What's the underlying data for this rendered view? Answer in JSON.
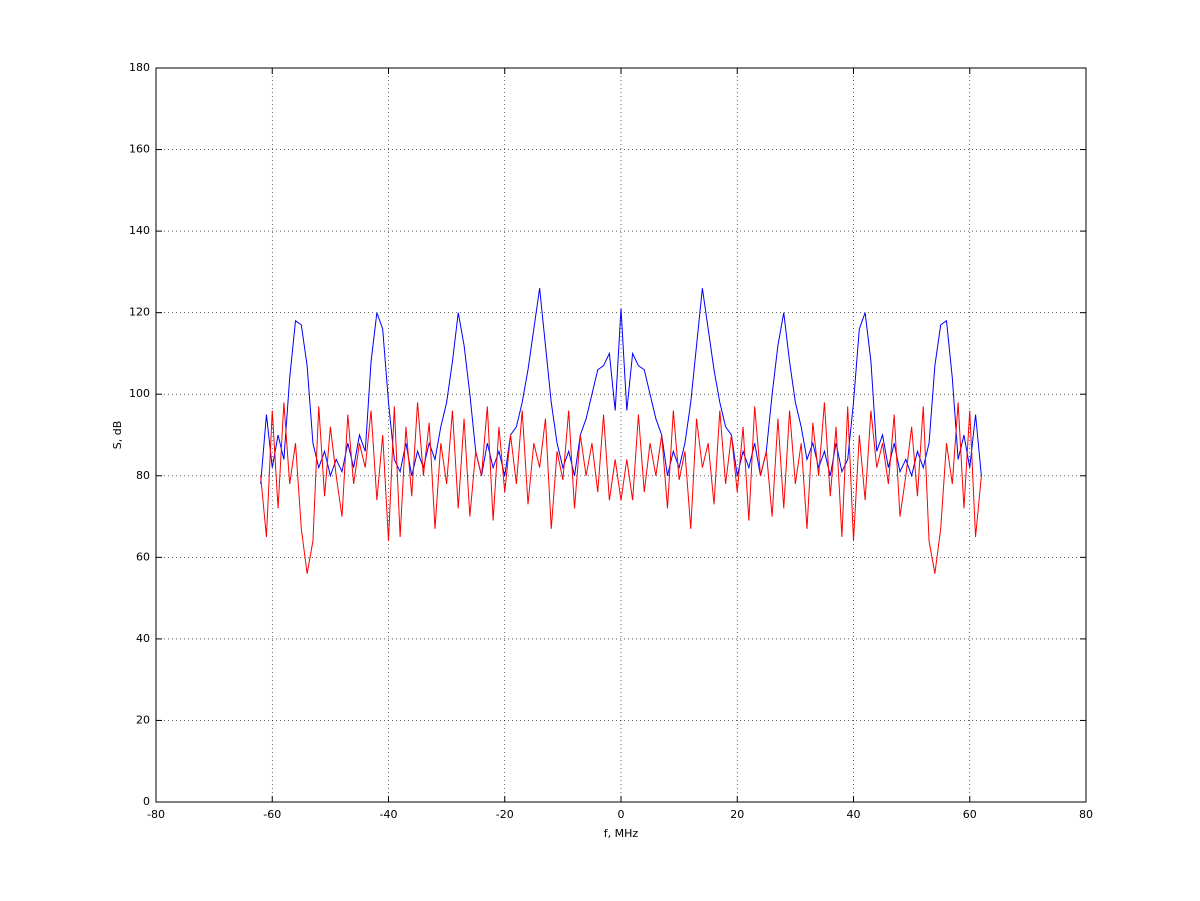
{
  "chart_data": {
    "type": "line",
    "xlabel": "f, MHz",
    "ylabel": "S, dB",
    "xlim": [
      -80,
      80
    ],
    "xticks": [
      -80,
      -60,
      -40,
      -20,
      0,
      20,
      40,
      60,
      80
    ],
    "ylim": [
      0,
      180
    ],
    "yticks": [
      0,
      20,
      40,
      60,
      80,
      100,
      120,
      140,
      160,
      180
    ],
    "grid": true,
    "x": [
      -62,
      -61,
      -60,
      -59,
      -58,
      -57,
      -56,
      -55,
      -54,
      -53,
      -52,
      -51,
      -50,
      -49,
      -48,
      -47,
      -46,
      -45,
      -44,
      -43,
      -42,
      -41,
      -40,
      -39,
      -38,
      -37,
      -36,
      -35,
      -34,
      -33,
      -32,
      -31,
      -30,
      -29,
      -28,
      -27,
      -26,
      -25,
      -24,
      -23,
      -22,
      -21,
      -20,
      -19,
      -18,
      -17,
      -16,
      -15,
      -14,
      -13,
      -12,
      -11,
      -10,
      -9,
      -8,
      -7,
      -6,
      -5,
      -4,
      -3,
      -2,
      -1,
      0,
      1,
      2,
      3,
      4,
      5,
      6,
      7,
      8,
      9,
      10,
      11,
      12,
      13,
      14,
      15,
      16,
      17,
      18,
      19,
      20,
      21,
      22,
      23,
      24,
      25,
      26,
      27,
      28,
      29,
      30,
      31,
      32,
      33,
      34,
      35,
      36,
      37,
      38,
      39,
      40,
      41,
      42,
      43,
      44,
      45,
      46,
      47,
      48,
      49,
      50,
      51,
      52,
      53,
      54,
      55,
      56,
      57,
      58,
      59,
      60,
      61,
      62
    ],
    "series": [
      {
        "color": "#0000ff",
        "values": [
          78,
          95,
          82,
          90,
          84,
          104,
          118,
          117,
          107,
          88,
          82,
          86,
          80,
          84,
          81,
          88,
          82,
          90,
          86,
          108,
          120,
          116,
          98,
          84,
          81,
          88,
          80,
          86,
          82,
          88,
          84,
          92,
          98,
          108,
          120,
          112,
          100,
          86,
          80,
          88,
          82,
          86,
          80,
          90,
          92,
          98,
          106,
          116,
          126,
          112,
          98,
          88,
          82,
          86,
          80,
          90,
          94,
          100,
          106,
          107,
          110,
          96,
          121,
          96,
          110,
          107,
          106,
          100,
          94,
          90,
          80,
          86,
          82,
          88,
          98,
          112,
          126,
          116,
          106,
          98,
          92,
          90,
          80,
          86,
          82,
          88,
          80,
          86,
          100,
          112,
          120,
          108,
          98,
          92,
          84,
          88,
          82,
          86,
          80,
          88,
          81,
          84,
          98,
          116,
          120,
          108,
          86,
          90,
          82,
          88,
          81,
          84,
          80,
          86,
          82,
          88,
          107,
          117,
          118,
          104,
          84,
          90,
          82,
          95,
          80
        ]
      },
      {
        "color": "#ff0000",
        "values": [
          80,
          65,
          96,
          72,
          98,
          78,
          88,
          67,
          56,
          64,
          97,
          75,
          92,
          80,
          70,
          95,
          78,
          88,
          82,
          96,
          74,
          90,
          64,
          97,
          65,
          92,
          75,
          98,
          80,
          93,
          67,
          88,
          78,
          96,
          72,
          94,
          70,
          86,
          80,
          97,
          69,
          92,
          76,
          90,
          78,
          96,
          73,
          88,
          82,
          94,
          67,
          86,
          79,
          96,
          72,
          90,
          80,
          88,
          76,
          95,
          74,
          84,
          74,
          84,
          74,
          95,
          76,
          88,
          80,
          90,
          72,
          96,
          79,
          86,
          67,
          94,
          82,
          88,
          73,
          96,
          78,
          90,
          76,
          92,
          69,
          97,
          80,
          86,
          70,
          94,
          72,
          96,
          78,
          88,
          67,
          93,
          80,
          98,
          75,
          92,
          65,
          97,
          64,
          90,
          74,
          96,
          82,
          88,
          78,
          95,
          70,
          80,
          92,
          75,
          97,
          64,
          56,
          67,
          88,
          78,
          98,
          72,
          96,
          65,
          80
        ]
      }
    ]
  }
}
